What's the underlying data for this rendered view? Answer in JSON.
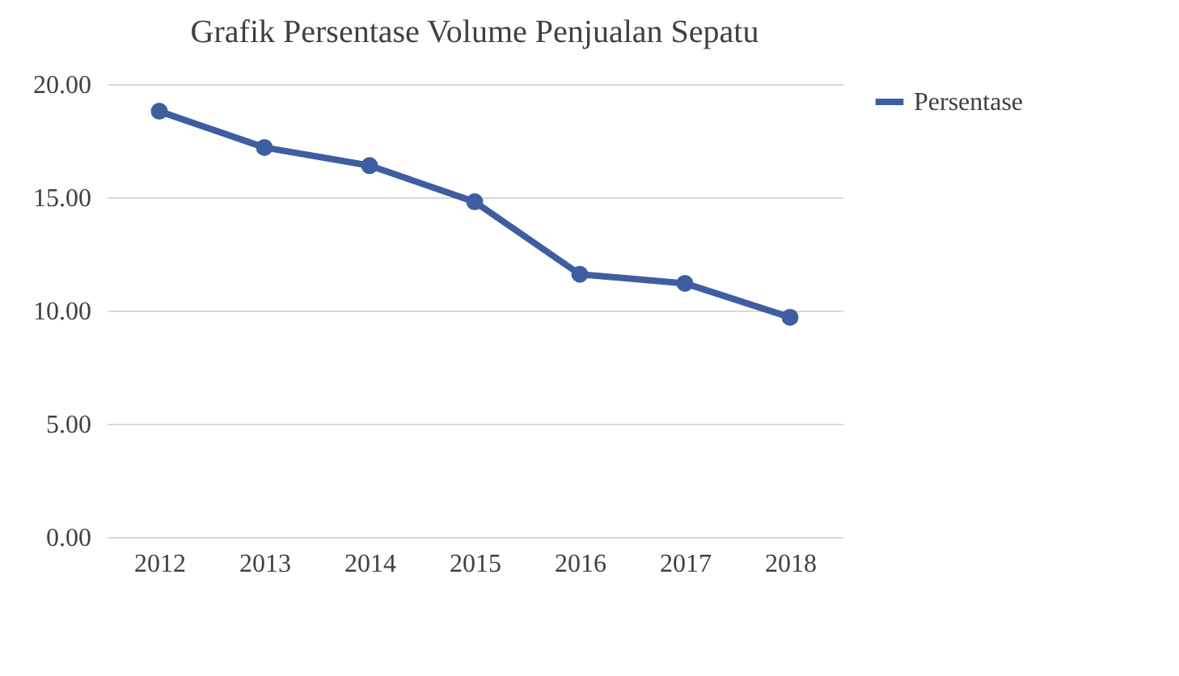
{
  "chart_data": {
    "type": "line",
    "title": "Grafik  Persentase Volume Penjualan Sepatu",
    "categories": [
      "2012",
      "2013",
      "2014",
      "2015",
      "2016",
      "2017",
      "2018"
    ],
    "series": [
      {
        "name": "Persentase",
        "color": "#3f5ea1",
        "values": [
          18.8,
          17.2,
          16.4,
          14.8,
          11.6,
          11.2,
          9.7
        ]
      }
    ],
    "ylim": [
      0,
      20
    ],
    "yticks": [
      {
        "value": 0,
        "label": "0.00"
      },
      {
        "value": 5,
        "label": "5.00"
      },
      {
        "value": 10,
        "label": "10.00"
      },
      {
        "value": 15,
        "label": "15.00"
      },
      {
        "value": 20,
        "label": "20.00"
      }
    ],
    "grid": "y",
    "legend": "right",
    "marker": "circle",
    "line_style": "solid"
  }
}
